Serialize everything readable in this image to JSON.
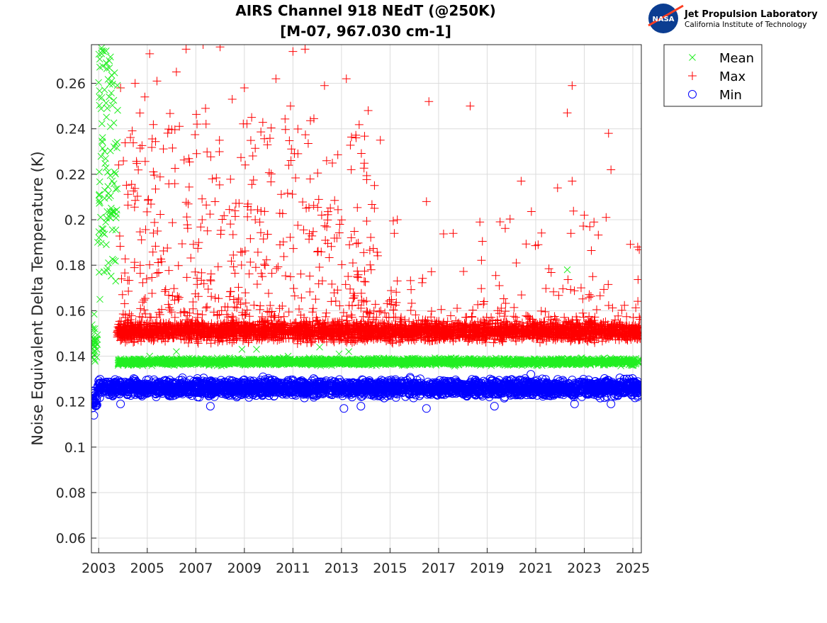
{
  "chart_data": {
    "type": "scatter",
    "title": [
      "AIRS Channel 918 NEdT (@250K)",
      "[M-07, 967.030 cm-1]"
    ],
    "xlabel": "",
    "ylabel": "Noise Equivalent Delta Temperature (K)",
    "xlim": [
      2002.7,
      2025.35
    ],
    "ylim": [
      0.0535,
      0.277
    ],
    "xticks": [
      2003,
      2005,
      2007,
      2009,
      2011,
      2013,
      2015,
      2017,
      2019,
      2021,
      2023,
      2025
    ],
    "xtick_labels": [
      "2003",
      "2005",
      "2007",
      "2009",
      "2011",
      "2013",
      "2015",
      "2017",
      "2019",
      "2021",
      "2023",
      "2025"
    ],
    "yticks": [
      0.06,
      0.08,
      0.1,
      0.12,
      0.14,
      0.16,
      0.18,
      0.2,
      0.22,
      0.24,
      0.26
    ],
    "ytick_labels": [
      "0.06",
      "0.08",
      "0.1",
      "0.12",
      "0.14",
      "0.16",
      "0.18",
      "0.2",
      "0.22",
      "0.24",
      "0.26"
    ],
    "grid": true,
    "legend": {
      "placement": "outside-top-right",
      "entries": [
        "Mean",
        "Max",
        "Min"
      ]
    },
    "series": [
      {
        "name": "Mean",
        "marker": "x",
        "color": "#22ee22",
        "segments": [
          {
            "x_range": [
              2002.72,
              2002.95
            ],
            "y_range": [
              0.133,
              0.16
            ]
          },
          {
            "x_range": [
              2002.95,
              2003.8
            ],
            "y_range": [
              0.175,
              0.277
            ]
          },
          {
            "x_range": [
              2003.8,
              2025.3
            ],
            "y_range": [
              0.1355,
              0.1395
            ]
          }
        ],
        "outliers": [
          [
            2003.05,
            0.165
          ],
          [
            2003.7,
            0.173
          ],
          [
            2005.1,
            0.14
          ],
          [
            2006.2,
            0.142
          ],
          [
            2008.9,
            0.143
          ],
          [
            2009.5,
            0.143
          ],
          [
            2010.8,
            0.14
          ],
          [
            2012.1,
            0.144
          ],
          [
            2012.9,
            0.141
          ],
          [
            2013.3,
            0.142
          ],
          [
            2022.3,
            0.178
          ]
        ]
      },
      {
        "name": "Max",
        "marker": "+",
        "color": "#ff0000",
        "segments": [
          {
            "x_range": [
              2003.75,
              2025.3
            ],
            "y_range": [
              0.145,
              0.157
            ]
          }
        ],
        "outliers": [
          [
            2003.9,
            0.258
          ],
          [
            2004.5,
            0.26
          ],
          [
            2004.9,
            0.254
          ],
          [
            2005.1,
            0.273
          ],
          [
            2005.4,
            0.261
          ],
          [
            2006.2,
            0.265
          ],
          [
            2006.6,
            0.275
          ],
          [
            2007.3,
            0.277
          ],
          [
            2007.4,
            0.249
          ],
          [
            2008.0,
            0.276
          ],
          [
            2008.5,
            0.253
          ],
          [
            2009.0,
            0.258
          ],
          [
            2009.3,
            0.245
          ],
          [
            2010.3,
            0.262
          ],
          [
            2010.9,
            0.25
          ],
          [
            2011.0,
            0.274
          ],
          [
            2011.5,
            0.275
          ],
          [
            2012.3,
            0.259
          ],
          [
            2013.2,
            0.262
          ],
          [
            2013.6,
            0.236
          ],
          [
            2014.1,
            0.248
          ],
          [
            2014.6,
            0.235
          ],
          [
            2016.6,
            0.252
          ],
          [
            2018.3,
            0.25
          ],
          [
            2020.4,
            0.217
          ],
          [
            2021.9,
            0.214
          ],
          [
            2022.3,
            0.247
          ],
          [
            2022.5,
            0.259
          ],
          [
            2022.5,
            0.217
          ],
          [
            2023.0,
            0.202
          ],
          [
            2024.0,
            0.238
          ],
          [
            2024.1,
            0.222
          ],
          [
            2025.2,
            0.188
          ],
          [
            2015.3,
            0.2
          ],
          [
            2016.5,
            0.208
          ],
          [
            2017.6,
            0.194
          ],
          [
            2018.7,
            0.199
          ],
          [
            2019.5,
            0.171
          ],
          [
            2020.2,
            0.181
          ],
          [
            2021.1,
            0.189
          ],
          [
            2023.4,
            0.199
          ],
          [
            2023.9,
            0.201
          ]
        ]
      },
      {
        "name": "Min",
        "marker": "o",
        "color": "#0000ff",
        "segments": [
          {
            "x_range": [
              2002.72,
              2002.95
            ],
            "y_range": [
              0.114,
              0.127
            ]
          },
          {
            "x_range": [
              2002.95,
              2025.3
            ],
            "y_range": [
              0.121,
              0.131
            ]
          }
        ],
        "outliers": [
          [
            2002.8,
            0.114
          ],
          [
            2003.9,
            0.119
          ],
          [
            2007.6,
            0.118
          ],
          [
            2013.1,
            0.117
          ],
          [
            2013.8,
            0.118
          ],
          [
            2016.5,
            0.117
          ],
          [
            2019.3,
            0.118
          ],
          [
            2020.8,
            0.132
          ],
          [
            2022.6,
            0.119
          ],
          [
            2024.1,
            0.119
          ]
        ]
      }
    ]
  },
  "logo": {
    "agency": "NASA",
    "line1": "Jet Propulsion Laboratory",
    "line2": "California Institute of Technology"
  }
}
